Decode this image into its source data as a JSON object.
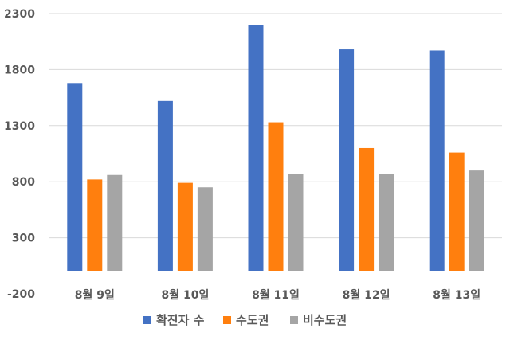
{
  "chart_data": {
    "type": "bar",
    "categories": [
      "8월 9일",
      "8월 10일",
      "8월 11일",
      "8월 12일",
      "8월 13일"
    ],
    "series": [
      {
        "name": "확진자 수",
        "color": "#4472C4",
        "values": [
          1680,
          1520,
          2200,
          1980,
          1970
        ]
      },
      {
        "name": "수도권",
        "color": "#FF7F0E",
        "values": [
          820,
          790,
          1330,
          1100,
          1060
        ]
      },
      {
        "name": "비수도권",
        "color": "#A5A5A5",
        "values": [
          860,
          750,
          870,
          870,
          900
        ]
      }
    ],
    "title": "",
    "xlabel": "",
    "ylabel": "",
    "ylim": [
      -200,
      2300
    ],
    "yticks": [
      -200,
      300,
      800,
      1300,
      1800,
      2300
    ],
    "grid": true,
    "legend": "bottom"
  }
}
